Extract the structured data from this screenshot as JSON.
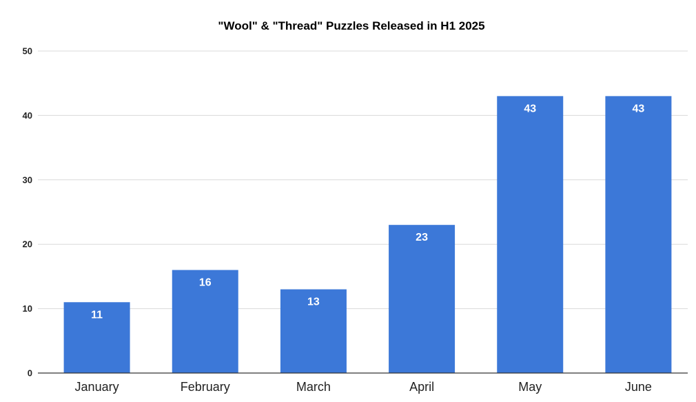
{
  "chart_data": {
    "type": "bar",
    "title": "\"Wool\" & \"Thread\" Puzzles Released in H1 2025",
    "xlabel": "",
    "ylabel": "",
    "categories": [
      "January",
      "February",
      "March",
      "April",
      "May",
      "June"
    ],
    "values": [
      11,
      16,
      13,
      23,
      43,
      43
    ],
    "data_labels": [
      "11",
      "16",
      "13",
      "23",
      "43",
      "43"
    ],
    "ylim": [
      0,
      50
    ],
    "y_ticks": [
      0,
      10,
      20,
      30,
      40,
      50
    ],
    "y_tick_labels": [
      "0",
      "10",
      "20",
      "30",
      "40",
      "50"
    ],
    "grid": true,
    "legend": "none",
    "colors": {
      "bar": "#3c78d8",
      "grid": "#d9d9d9",
      "axis": "#333333",
      "text": "#222222"
    }
  }
}
